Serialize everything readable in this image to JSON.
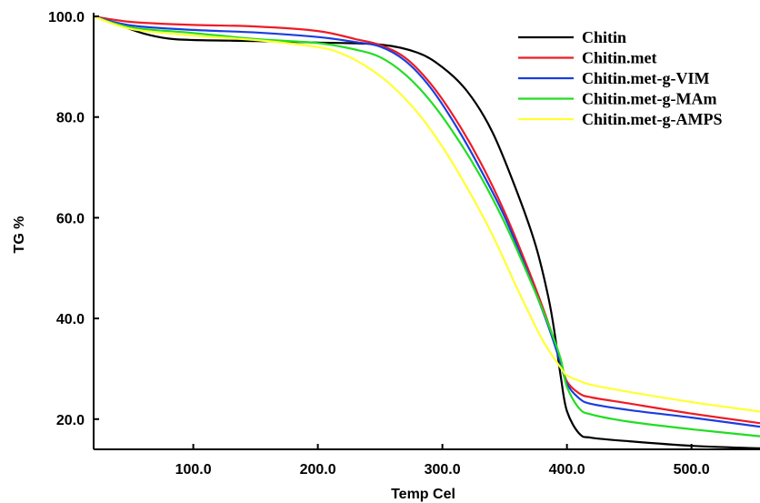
{
  "chart_data": {
    "type": "line",
    "title": "",
    "xlabel": "Temp Cel",
    "ylabel": "TG %",
    "xlim": [
      20,
      555
    ],
    "ylim": [
      14,
      100
    ],
    "xticks": [
      100,
      200,
      300,
      400,
      500
    ],
    "xtick_labels": [
      "100.0",
      "200.0",
      "300.0",
      "400.0",
      "500.0"
    ],
    "yticks": [
      20,
      40,
      60,
      80,
      100
    ],
    "ytick_labels": [
      "20.0",
      "40.0",
      "60.0",
      "80.0",
      "100.0"
    ],
    "grid": false,
    "legend_position": "top-right",
    "series": [
      {
        "name": "Chitin",
        "color": "#000000",
        "x": [
          20,
          40,
          60,
          80,
          100,
          150,
          200,
          250,
          280,
          300,
          320,
          340,
          360,
          375,
          385,
          390,
          395,
          400,
          410,
          420,
          450,
          500,
          555
        ],
        "y": [
          100,
          98.3,
          96.6,
          95.6,
          95.3,
          95.1,
          94.8,
          94.4,
          92.8,
          89.9,
          85.1,
          77.1,
          65.1,
          54.4,
          44.3,
          37.3,
          28.5,
          21.6,
          17.1,
          16.3,
          15.6,
          14.7,
          14.2
        ]
      },
      {
        "name": "Chitin.met",
        "color": "#ee1c25",
        "x": [
          20,
          50,
          100,
          150,
          200,
          230,
          250,
          270,
          290,
          310,
          330,
          350,
          370,
          385,
          395,
          400,
          410,
          420,
          450,
          500,
          555
        ],
        "y": [
          100,
          98.9,
          98.3,
          98.0,
          97.1,
          95.5,
          94.3,
          91.8,
          86.8,
          79.8,
          71.3,
          61.1,
          49.1,
          39.1,
          31.4,
          27.5,
          25.1,
          24.3,
          23.1,
          21.1,
          19.2
        ]
      },
      {
        "name": "Chitin.met-g-VIM",
        "color": "#1a3ee0",
        "x": [
          20,
          50,
          100,
          150,
          200,
          230,
          250,
          270,
          290,
          310,
          330,
          350,
          370,
          385,
          395,
          400,
          410,
          420,
          450,
          500,
          555
        ],
        "y": [
          100,
          98.2,
          97.3,
          96.8,
          95.9,
          94.9,
          94.0,
          91.2,
          86.0,
          78.6,
          69.9,
          60.2,
          48.2,
          38.5,
          31.0,
          27.0,
          24.1,
          23.0,
          21.8,
          20.3,
          18.5
        ]
      },
      {
        "name": "Chitin.met-g-MAm",
        "color": "#22dd22",
        "x": [
          20,
          50,
          100,
          150,
          200,
          230,
          250,
          270,
          290,
          310,
          330,
          350,
          370,
          385,
          395,
          400,
          410,
          420,
          450,
          500,
          555
        ],
        "y": [
          100,
          97.8,
          96.7,
          95.5,
          94.7,
          93.4,
          91.9,
          88.5,
          83.3,
          76.5,
          68.5,
          59.0,
          47.9,
          38.9,
          31.9,
          26.4,
          22.1,
          20.9,
          19.5,
          18.0,
          16.6
        ]
      },
      {
        "name": "Chitin.met-g-AMPS",
        "color": "#ffff33",
        "x": [
          20,
          50,
          100,
          150,
          200,
          220,
          240,
          260,
          280,
          300,
          320,
          340,
          360,
          380,
          395,
          400,
          410,
          420,
          450,
          500,
          555
        ],
        "y": [
          100,
          97.5,
          96.2,
          95.3,
          93.9,
          92.5,
          89.9,
          86.1,
          80.9,
          74.1,
          65.9,
          56.7,
          46.0,
          35.9,
          30.2,
          28.7,
          27.6,
          26.8,
          25.4,
          23.4,
          21.5
        ]
      }
    ]
  }
}
